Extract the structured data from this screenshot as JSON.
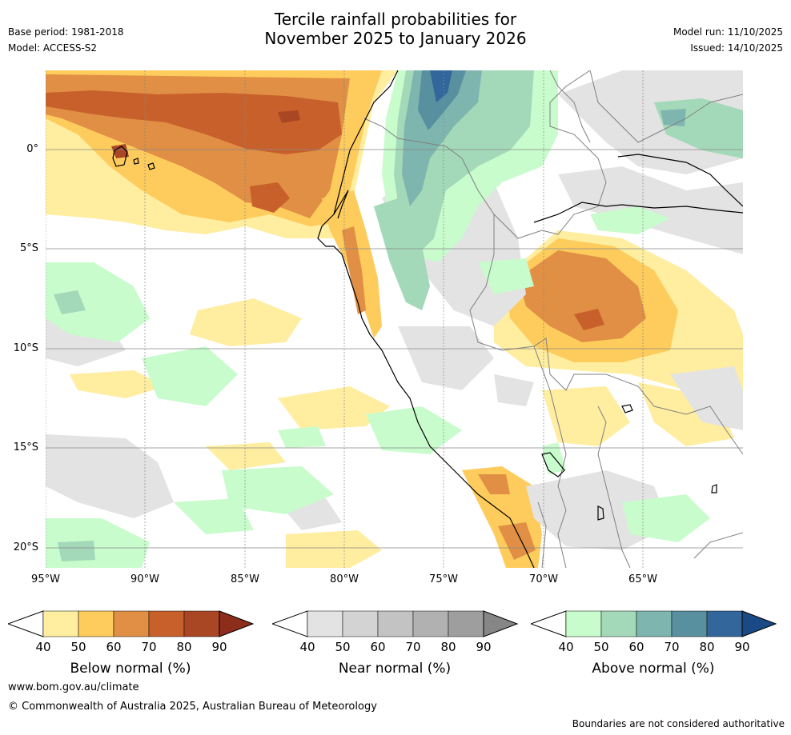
{
  "title": {
    "line1": "Tercile rainfall probabilities for",
    "line2": "November 2025 to January 2026"
  },
  "meta": {
    "base_period": "Base period: 1981-2018",
    "model": "Model: ACCESS-S2",
    "model_run": "Model run: 11/10/2025",
    "issued": "Issued: 14/10/2025"
  },
  "map": {
    "lat_labels": [
      "0°",
      "5°S",
      "10°S",
      "15°S",
      "20°S"
    ],
    "lon_labels": [
      "95°W",
      "90°W",
      "85°W",
      "80°W",
      "75°W",
      "70°W",
      "65°W"
    ],
    "lon_range": [
      -95,
      -60
    ],
    "lat_range": [
      -21,
      4
    ],
    "colors": {
      "ocean_bg": "#ffffff",
      "coastline": "#000000",
      "borders": "#808080"
    }
  },
  "colorbars": [
    {
      "name": "Below normal (%)",
      "ticks": [
        "40",
        "50",
        "60",
        "70",
        "80",
        "90"
      ],
      "colors": [
        "#ffeda0",
        "#fecc5c",
        "#e08f45",
        "#c8602c",
        "#a94624",
        "#8c2d1c"
      ]
    },
    {
      "name": "Near normal (%)",
      "ticks": [
        "40",
        "50",
        "60",
        "70",
        "80",
        "90"
      ],
      "colors": [
        "#e3e3e3",
        "#d3d3d3",
        "#c3c3c3",
        "#b1b1b1",
        "#9e9e9e",
        "#868686"
      ]
    },
    {
      "name": "Above normal (%)",
      "ticks": [
        "40",
        "50",
        "60",
        "70",
        "80",
        "90"
      ],
      "colors": [
        "#c8fccc",
        "#a3d9b9",
        "#7fb5af",
        "#5990a0",
        "#33669a",
        "#1a4a86"
      ]
    }
  ],
  "footer": {
    "website": "www.bom.gov.au/climate",
    "copyright": "© Commonwealth of Australia 2025, Australian Bureau of Meteorology",
    "disclaimer": "Boundaries are not considered authoritative"
  }
}
